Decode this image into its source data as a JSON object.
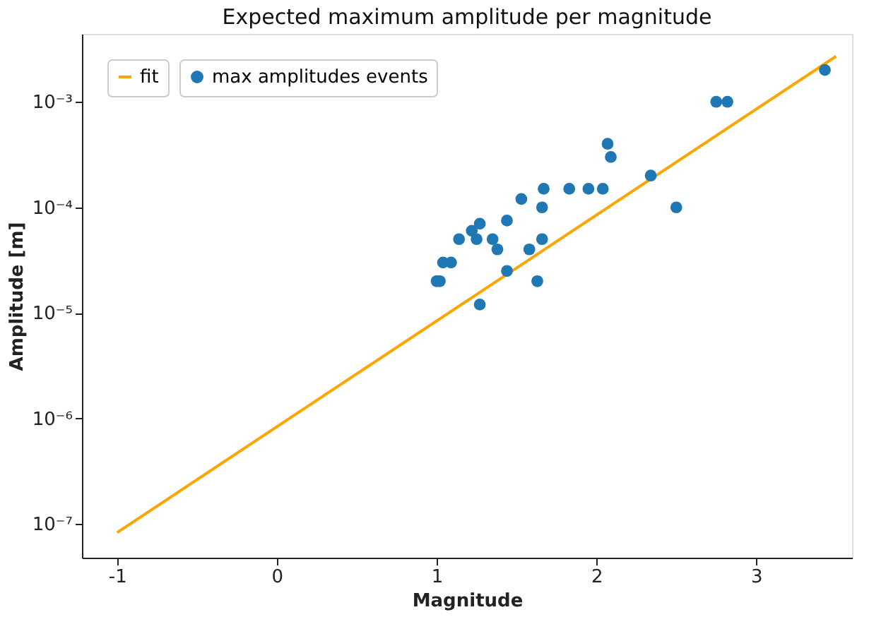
{
  "chart_data": {
    "type": "scatter",
    "title": "Expected maximum amplitude per magnitude",
    "xlabel": "Magnitude",
    "ylabel": "Amplitude [m]",
    "log": "y",
    "grid": false,
    "legend": "top left",
    "xlim": [
      -1.22,
      3.6
    ],
    "xticks": [
      -1,
      0,
      1,
      2,
      3
    ],
    "ylim": [
      4.8e-08,
      0.0044
    ],
    "yticks": [
      {
        "value": 1e-07,
        "label": "10⁻⁷"
      },
      {
        "value": 1e-06,
        "label": "10⁻⁶"
      },
      {
        "value": 1e-05,
        "label": "10⁻⁵"
      },
      {
        "value": 0.0001,
        "label": "10⁻⁴"
      },
      {
        "value": 0.001,
        "label": "10⁻³"
      }
    ],
    "series": [
      {
        "name": "fit",
        "type": "line",
        "color": "#ffa500",
        "line_style": "solid",
        "marker": "none",
        "x": [
          -1.0,
          3.5
        ],
        "values": [
          8.3e-08,
          0.0027
        ]
      },
      {
        "name": "max amplitudes events",
        "type": "scatter",
        "color": "#1f77b4",
        "marker": "circle",
        "x": [
          1.0,
          1.02,
          1.04,
          1.09,
          1.14,
          1.22,
          1.25,
          1.27,
          1.27,
          1.35,
          1.38,
          1.44,
          1.44,
          1.53,
          1.58,
          1.63,
          1.66,
          1.66,
          1.67,
          1.83,
          1.95,
          2.04,
          2.07,
          2.09,
          2.34,
          2.5,
          2.75,
          2.82,
          3.43
        ],
        "values": [
          2e-05,
          2e-05,
          3e-05,
          3e-05,
          5e-05,
          6e-05,
          5e-05,
          7e-05,
          1.2e-05,
          5e-05,
          4e-05,
          7.5e-05,
          2.5e-05,
          0.00012,
          4e-05,
          2e-05,
          5e-05,
          0.0001,
          0.00015,
          0.00015,
          0.00015,
          0.00015,
          0.0004,
          0.0003,
          0.0002,
          0.0001,
          0.001,
          0.001,
          0.002
        ]
      }
    ]
  }
}
